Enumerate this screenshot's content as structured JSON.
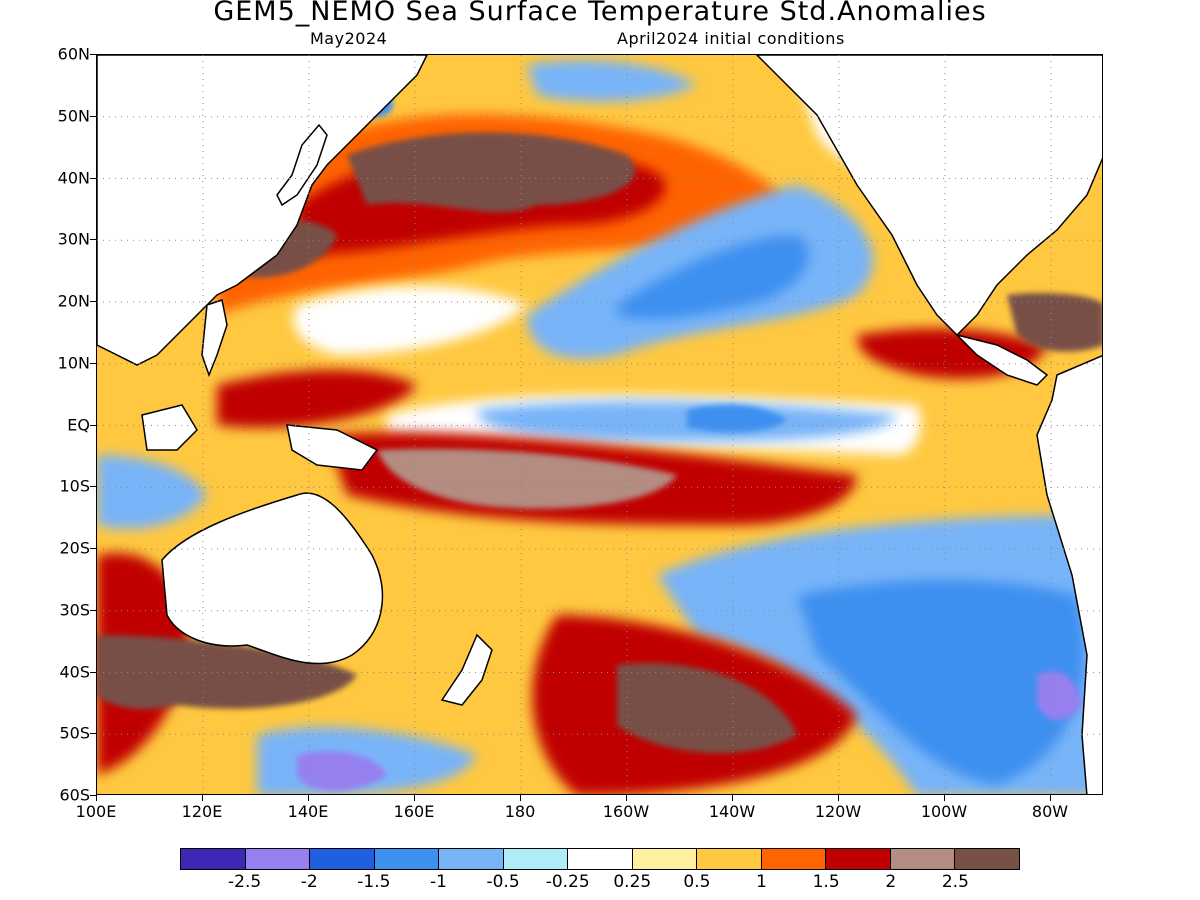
{
  "header": {
    "title": "GEM5_NEMO Sea Surface Temperature Std.Anomalies",
    "valid_month": "May2024",
    "init": "April2024 initial conditions"
  },
  "map": {
    "region": "Pacific Ocean",
    "lat_range": [
      -60,
      60
    ],
    "lon_range": [
      100,
      290
    ],
    "lat_ticks": [
      {
        "label": "60N",
        "lat": 60
      },
      {
        "label": "50N",
        "lat": 50
      },
      {
        "label": "40N",
        "lat": 40
      },
      {
        "label": "30N",
        "lat": 30
      },
      {
        "label": "20N",
        "lat": 20
      },
      {
        "label": "10N",
        "lat": 10
      },
      {
        "label": "EQ",
        "lat": 0
      },
      {
        "label": "10S",
        "lat": -10
      },
      {
        "label": "20S",
        "lat": -20
      },
      {
        "label": "30S",
        "lat": -30
      },
      {
        "label": "40S",
        "lat": -40
      },
      {
        "label": "50S",
        "lat": -50
      },
      {
        "label": "60S",
        "lat": -60
      }
    ],
    "lon_ticks": [
      {
        "label": "100E",
        "lon": 100
      },
      {
        "label": "120E",
        "lon": 120
      },
      {
        "label": "140E",
        "lon": 140
      },
      {
        "label": "160E",
        "lon": 160
      },
      {
        "label": "180",
        "lon": 180
      },
      {
        "label": "160W",
        "lon": 200
      },
      {
        "label": "140W",
        "lon": 220
      },
      {
        "label": "120W",
        "lon": 240
      },
      {
        "label": "100W",
        "lon": 260
      },
      {
        "label": "80W",
        "lon": 280
      }
    ],
    "gridlines": true
  },
  "colorbar": {
    "colors": [
      "#3c28b4",
      "#9680f0",
      "#2060e0",
      "#3c90f0",
      "#78b4f8",
      "#b0ecf8",
      "#ffffff",
      "#fff0a0",
      "#ffc840",
      "#ff6400",
      "#c00000",
      "#b48c82",
      "#785046"
    ],
    "labels": [
      "-2.5",
      "-2",
      "-1.5",
      "-1",
      "-0.5",
      "-0.25",
      "0.25",
      "0.5",
      "1",
      "1.5",
      "2",
      "2.5"
    ]
  }
}
